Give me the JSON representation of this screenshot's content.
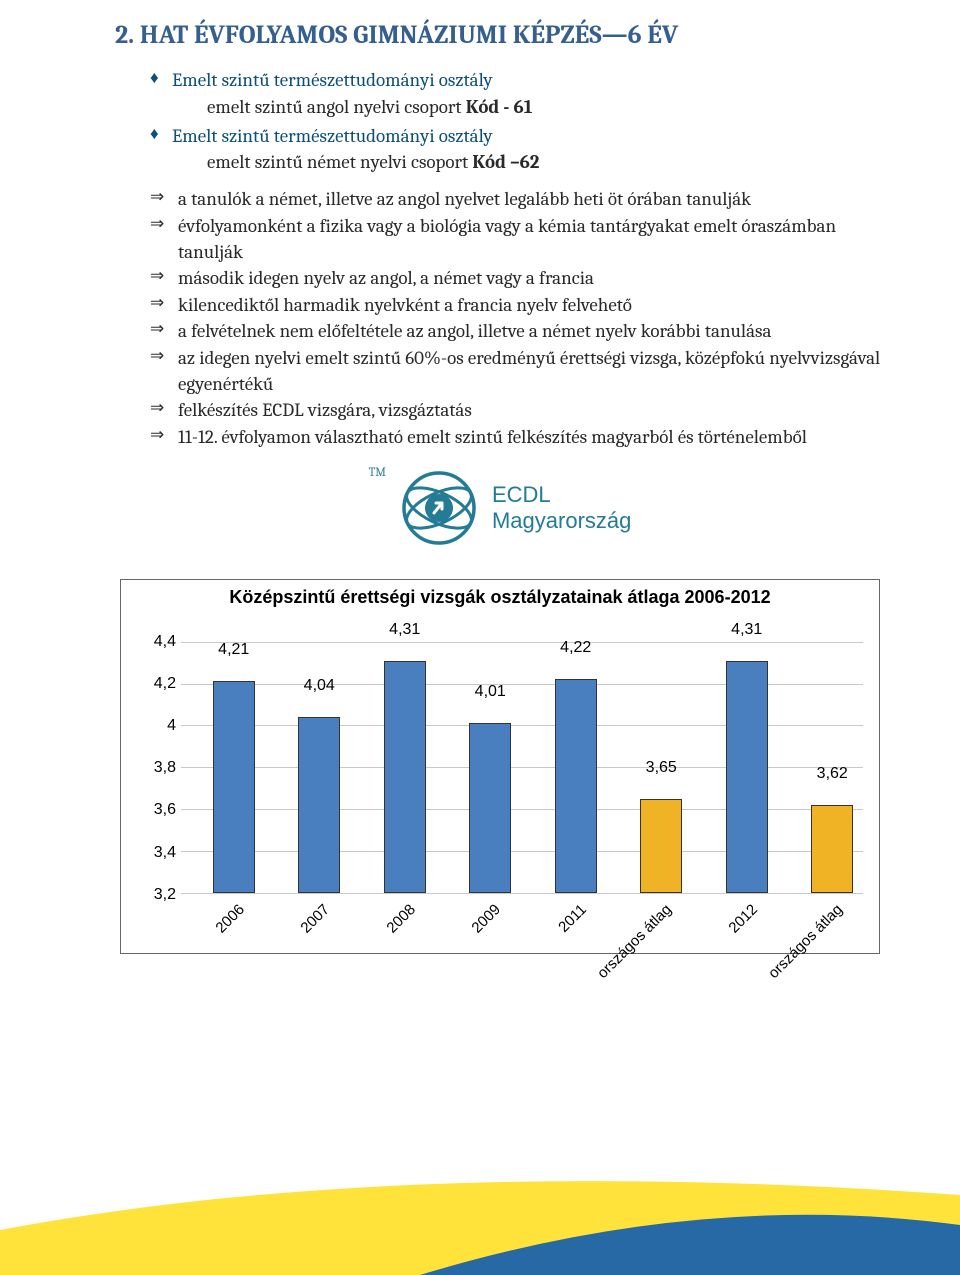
{
  "heading": {
    "number": "2.",
    "text": "HAT ÉVFOLYAMOS GIMNÁZIUMI KÉPZÉS—6 ÉV"
  },
  "blue_bullets": [
    {
      "main": "Emelt szintű természettudományi osztály",
      "sub": "emelt szintű angol nyelvi csoport Kód - 61"
    },
    {
      "main": "Emelt szintű természettudományi osztály",
      "sub": "emelt szintű német nyelvi csoport Kód –62"
    }
  ],
  "arrow_items": [
    "a tanulók a német, illetve az angol nyelvet legalább heti öt órában tanulják",
    "évfolyamonként a fizika vagy a biológia vagy a kémia tantárgyakat emelt óraszámban tanulják",
    "második idegen nyelv az angol, a német vagy a francia",
    "kilencediktől harmadik nyelvként a francia nyelv felvehető",
    "a felvételnek nem előfeltétele az angol, illetve a német nyelv korábbi tanulása",
    "az idegen nyelvi emelt szintű 60%-os eredményű érettségi vizsga, középfokú nyelvvizsgával egyenértékű",
    "felkészítés ECDL vizsgára, vizsgáztatás",
    "11-12. évfolyamon választható emelt szintű felkészítés magyarból és történelemből"
  ],
  "logo": {
    "tm": "TM",
    "line1": "ECDL",
    "line2": "Magyarország"
  },
  "bold_sub": {
    "0": "Kód - 61",
    "1": "Kód –62"
  },
  "chart": {
    "title": "Középszintű érettségi vizsgák osztályzatainak átlaga 2006-2012",
    "ylim_min": 3.2,
    "ylim_max": 4.4,
    "ytick_step": 0.2,
    "yticks": [
      "3,2",
      "3,4",
      "3,6",
      "3,8",
      "4",
      "4,2",
      "4,4"
    ],
    "categories": [
      "2006",
      "2007",
      "2008",
      "2009",
      "2011",
      "országos átlag",
      "2012",
      "országos átlag"
    ],
    "values": [
      4.21,
      4.04,
      4.31,
      4.01,
      4.22,
      3.65,
      4.31,
      3.62
    ],
    "value_labels": [
      "4,21",
      "4,04",
      "4,31",
      "4,01",
      "4,22",
      "3,65",
      "4,31",
      "3,62"
    ],
    "colors_blue": "#4a7fbf",
    "colors_yellow": "#f0b325",
    "bar_colors": [
      "blue",
      "blue",
      "blue",
      "blue",
      "blue",
      "yellow",
      "blue",
      "yellow"
    ],
    "grid_color": "#c9c9c9",
    "background": "#ffffff"
  },
  "decoration": {
    "curve_yellow": "#ffe33a",
    "curve_blue": "#2669a5"
  }
}
